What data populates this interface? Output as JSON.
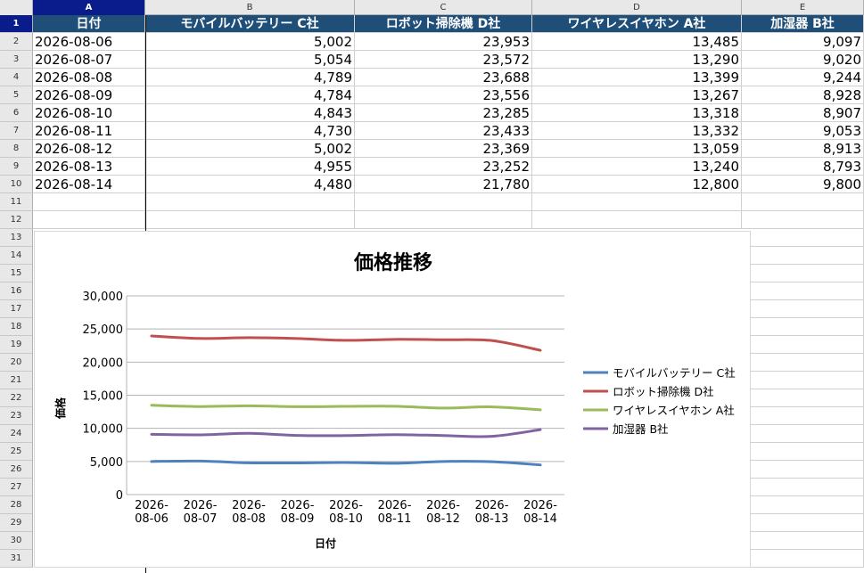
{
  "columns": [
    "A",
    "B",
    "C",
    "D",
    "E"
  ],
  "selected_column": "A",
  "selected_row": 1,
  "row_numbers": [
    1,
    2,
    3,
    4,
    5,
    6,
    7,
    8,
    9,
    10,
    11,
    12,
    13,
    14,
    15,
    16,
    17,
    18,
    19,
    20,
    21,
    22,
    23,
    24,
    25,
    26,
    27,
    28,
    29,
    30,
    31
  ],
  "table": {
    "headers": [
      "日付",
      "モバイルバッテリー C社",
      "ロボット掃除機 D社",
      "ワイヤレスイヤホン A社",
      "加湿器 B社"
    ],
    "rows": [
      [
        "2026-08-06",
        "5,002",
        "23,953",
        "13,485",
        "9,097"
      ],
      [
        "2026-08-07",
        "5,054",
        "23,572",
        "13,290",
        "9,020"
      ],
      [
        "2026-08-08",
        "4,789",
        "23,688",
        "13,399",
        "9,244"
      ],
      [
        "2026-08-09",
        "4,784",
        "23,556",
        "13,267",
        "8,928"
      ],
      [
        "2026-08-10",
        "4,843",
        "23,285",
        "13,318",
        "8,907"
      ],
      [
        "2026-08-11",
        "4,730",
        "23,433",
        "13,332",
        "9,053"
      ],
      [
        "2026-08-12",
        "5,002",
        "23,369",
        "13,059",
        "8,913"
      ],
      [
        "2026-08-13",
        "4,955",
        "23,252",
        "13,240",
        "8,793"
      ],
      [
        "2026-08-14",
        "4,480",
        "21,780",
        "12,800",
        "9,800"
      ]
    ]
  },
  "colors": {
    "header_fill": "#1f4e79",
    "selection": "#0a1c8c",
    "series": [
      "#4f81bd",
      "#c0504d",
      "#9bbb59",
      "#8064a2"
    ]
  },
  "chart_data": {
    "type": "line",
    "title": "価格推移",
    "xlabel": "日付",
    "ylabel": "価格",
    "x": [
      "2026-08-06",
      "2026-08-07",
      "2026-08-08",
      "2026-08-09",
      "2026-08-10",
      "2026-08-11",
      "2026-08-12",
      "2026-08-13",
      "2026-08-14"
    ],
    "x_tick_labels": [
      [
        "2026-",
        "08-06"
      ],
      [
        "2026-",
        "08-07"
      ],
      [
        "2026-",
        "08-08"
      ],
      [
        "2026-",
        "08-09"
      ],
      [
        "2026-",
        "08-10"
      ],
      [
        "2026-",
        "08-11"
      ],
      [
        "2026-",
        "08-12"
      ],
      [
        "2026-",
        "08-13"
      ],
      [
        "2026-",
        "08-14"
      ]
    ],
    "ylim": [
      0,
      30000
    ],
    "y_ticks": [
      0,
      5000,
      10000,
      15000,
      20000,
      25000,
      30000
    ],
    "y_tick_labels": [
      "0",
      "5,000",
      "10,000",
      "15,000",
      "20,000",
      "25,000",
      "30,000"
    ],
    "grid": true,
    "legend_position": "right",
    "series": [
      {
        "name": "モバイルバッテリー C社",
        "values": [
          5002,
          5054,
          4789,
          4784,
          4843,
          4730,
          5002,
          4955,
          4480
        ]
      },
      {
        "name": "ロボット掃除機 D社",
        "values": [
          23953,
          23572,
          23688,
          23556,
          23285,
          23433,
          23369,
          23252,
          21780
        ]
      },
      {
        "name": "ワイヤレスイヤホン A社",
        "values": [
          13485,
          13290,
          13399,
          13267,
          13318,
          13332,
          13059,
          13240,
          12800
        ]
      },
      {
        "name": "加湿器 B社",
        "values": [
          9097,
          9020,
          9244,
          8928,
          8907,
          9053,
          8913,
          8793,
          9800
        ]
      }
    ]
  }
}
